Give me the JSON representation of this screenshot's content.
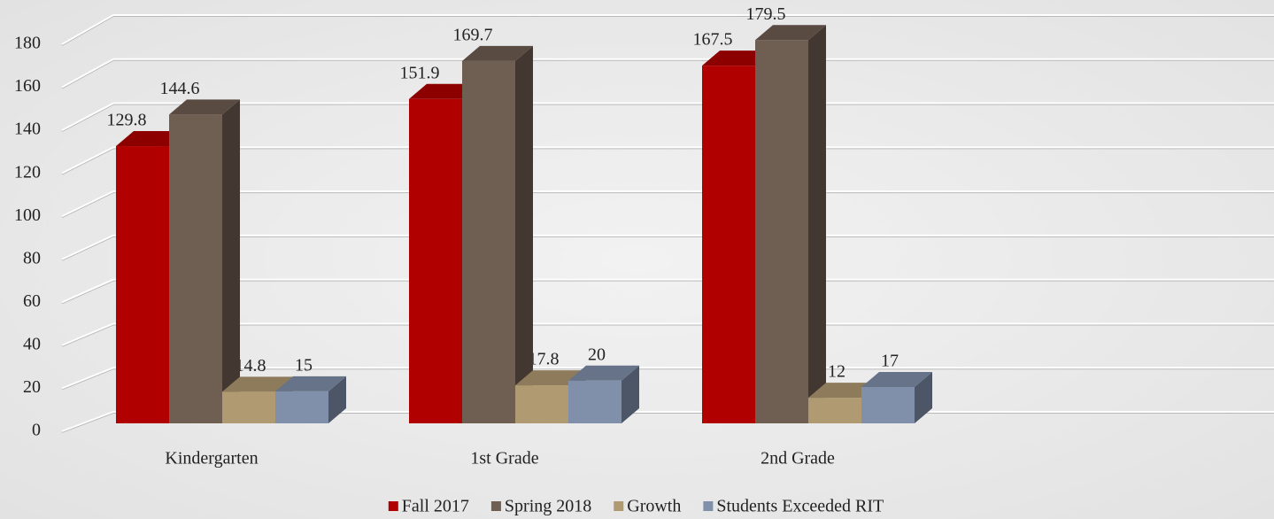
{
  "chart_data": {
    "type": "bar3d",
    "categories": [
      "Kindergarten",
      "1st Grade",
      "2nd Grade"
    ],
    "series": [
      {
        "name": "Fall 2017",
        "color": "#b00000",
        "values": [
          129.8,
          151.9,
          167.5
        ]
      },
      {
        "name": "Spring 2018",
        "color": "#6f5e52",
        "values": [
          144.6,
          169.7,
          179.5
        ]
      },
      {
        "name": "Growth",
        "color": "#b09a72",
        "values": [
          14.8,
          17.8,
          12
        ]
      },
      {
        "name": "Students Exceeded RIT",
        "color": "#8090ab",
        "values": [
          15,
          20,
          17
        ]
      }
    ],
    "ylim": [
      0,
      180
    ],
    "yticks": [
      0,
      20,
      40,
      60,
      80,
      100,
      120,
      140,
      160,
      180
    ],
    "grid": true,
    "legend": "bottom"
  }
}
